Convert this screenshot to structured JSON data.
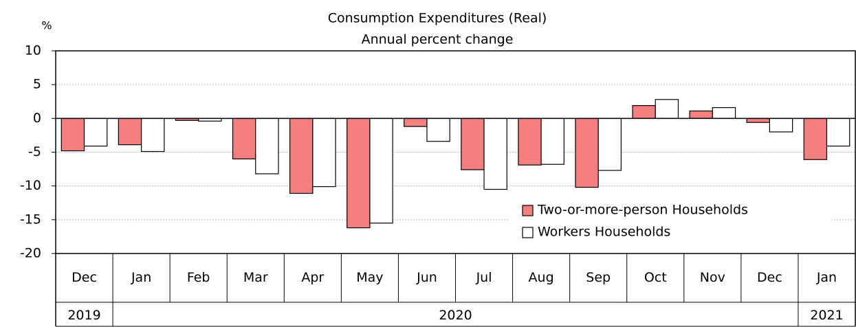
{
  "chart_data": {
    "type": "bar",
    "title": "Consumption Expenditures (Real)",
    "subtitle": "Annual percent change",
    "y_label": "%",
    "categories": [
      "Dec",
      "Jan",
      "Feb",
      "Mar",
      "Apr",
      "May",
      "Jun",
      "Jul",
      "Aug",
      "Sep",
      "Oct",
      "Nov",
      "Dec",
      "Jan"
    ],
    "year_groups": [
      {
        "label": "2019",
        "count": 1
      },
      {
        "label": "2020",
        "count": 12
      },
      {
        "label": "2021",
        "count": 1
      }
    ],
    "series": [
      {
        "name": "Two-or-more-person Households",
        "color": "#f47f7f",
        "values": [
          -4.8,
          -3.9,
          -0.3,
          -6.0,
          -11.1,
          -16.2,
          -1.2,
          -7.6,
          -6.9,
          -10.2,
          1.9,
          1.1,
          -0.6,
          -6.1
        ]
      },
      {
        "name": "Workers Households",
        "color": "#ffffff",
        "values": [
          -4.1,
          -4.9,
          -0.4,
          -8.2,
          -10.1,
          -15.5,
          -3.4,
          -10.5,
          -6.8,
          -7.7,
          2.8,
          1.6,
          -2.0,
          -4.1
        ]
      }
    ],
    "ylim": [
      -20,
      10
    ],
    "yticks": [
      -20,
      -15,
      -10,
      -5,
      0,
      5,
      10
    ],
    "grid": true,
    "legend": "lower right"
  }
}
